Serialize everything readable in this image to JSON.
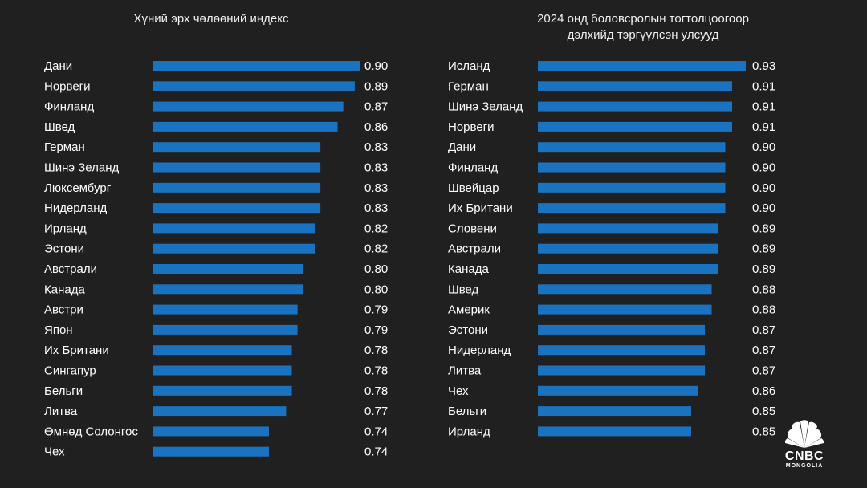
{
  "chart_data": [
    {
      "type": "bar",
      "orientation": "horizontal",
      "title": "Хүний эрх чөлөөний индекс",
      "categories": [
        "Дани",
        "Норвеги",
        "Финланд",
        "Швед",
        "Герман",
        "Шинэ Зеланд",
        "Люксембург",
        "Нидерланд",
        "Ирланд",
        "Эстони",
        "Австрали",
        "Канада",
        "Австри",
        "Япон",
        "Их Британи",
        "Сингапур",
        "Бельги",
        "Литва",
        "Өмнөд Солонгос",
        "Чех"
      ],
      "values": [
        0.9,
        0.89,
        0.87,
        0.86,
        0.83,
        0.83,
        0.83,
        0.83,
        0.82,
        0.82,
        0.8,
        0.8,
        0.79,
        0.79,
        0.78,
        0.78,
        0.78,
        0.77,
        0.74,
        0.74
      ],
      "value_labels": [
        "0.90",
        "0.89",
        "0.87",
        "0.86",
        "0.83",
        "0.83",
        "0.83",
        "0.83",
        "0.82",
        "0.82",
        "0.80",
        "0.80",
        "0.79",
        "0.79",
        "0.78",
        "0.78",
        "0.78",
        "0.77",
        "0.74",
        "0.74"
      ],
      "bar_color": "#1a73c0",
      "grid": false,
      "legend": "none"
    },
    {
      "type": "bar",
      "orientation": "horizontal",
      "title_lines": [
        "2024 онд боловсролын тогтолцоогоор",
        "дэлхийд тэргүүлсэн улсууд"
      ],
      "categories": [
        "Исланд",
        "Герман",
        "Шинэ Зеланд",
        "Норвеги",
        "Дани",
        "Финланд",
        "Швейцар",
        "Их Британи",
        "Словени",
        "Австрали",
        "Канада",
        "Швед",
        "Америк",
        "Эстони",
        "Нидерланд",
        "Литва",
        "Чех",
        "Бельги",
        "Ирланд"
      ],
      "values": [
        0.93,
        0.91,
        0.91,
        0.91,
        0.9,
        0.9,
        0.9,
        0.9,
        0.89,
        0.89,
        0.89,
        0.88,
        0.88,
        0.87,
        0.87,
        0.87,
        0.86,
        0.85,
        0.85
      ],
      "value_labels": [
        "0.93",
        "0.91",
        "0.91",
        "0.91",
        "0.90",
        "0.90",
        "0.90",
        "0.90",
        "0.89",
        "0.89",
        "0.89",
        "0.88",
        "0.88",
        "0.87",
        "0.87",
        "0.87",
        "0.86",
        "0.85",
        "0.85"
      ],
      "bar_color": "#1a73c0",
      "grid": false,
      "legend": "none"
    }
  ],
  "logo": {
    "text": "CNBC",
    "subtext": "MONGOLIA",
    "colors": [
      "#ffffff"
    ]
  },
  "background_color": "#202020"
}
